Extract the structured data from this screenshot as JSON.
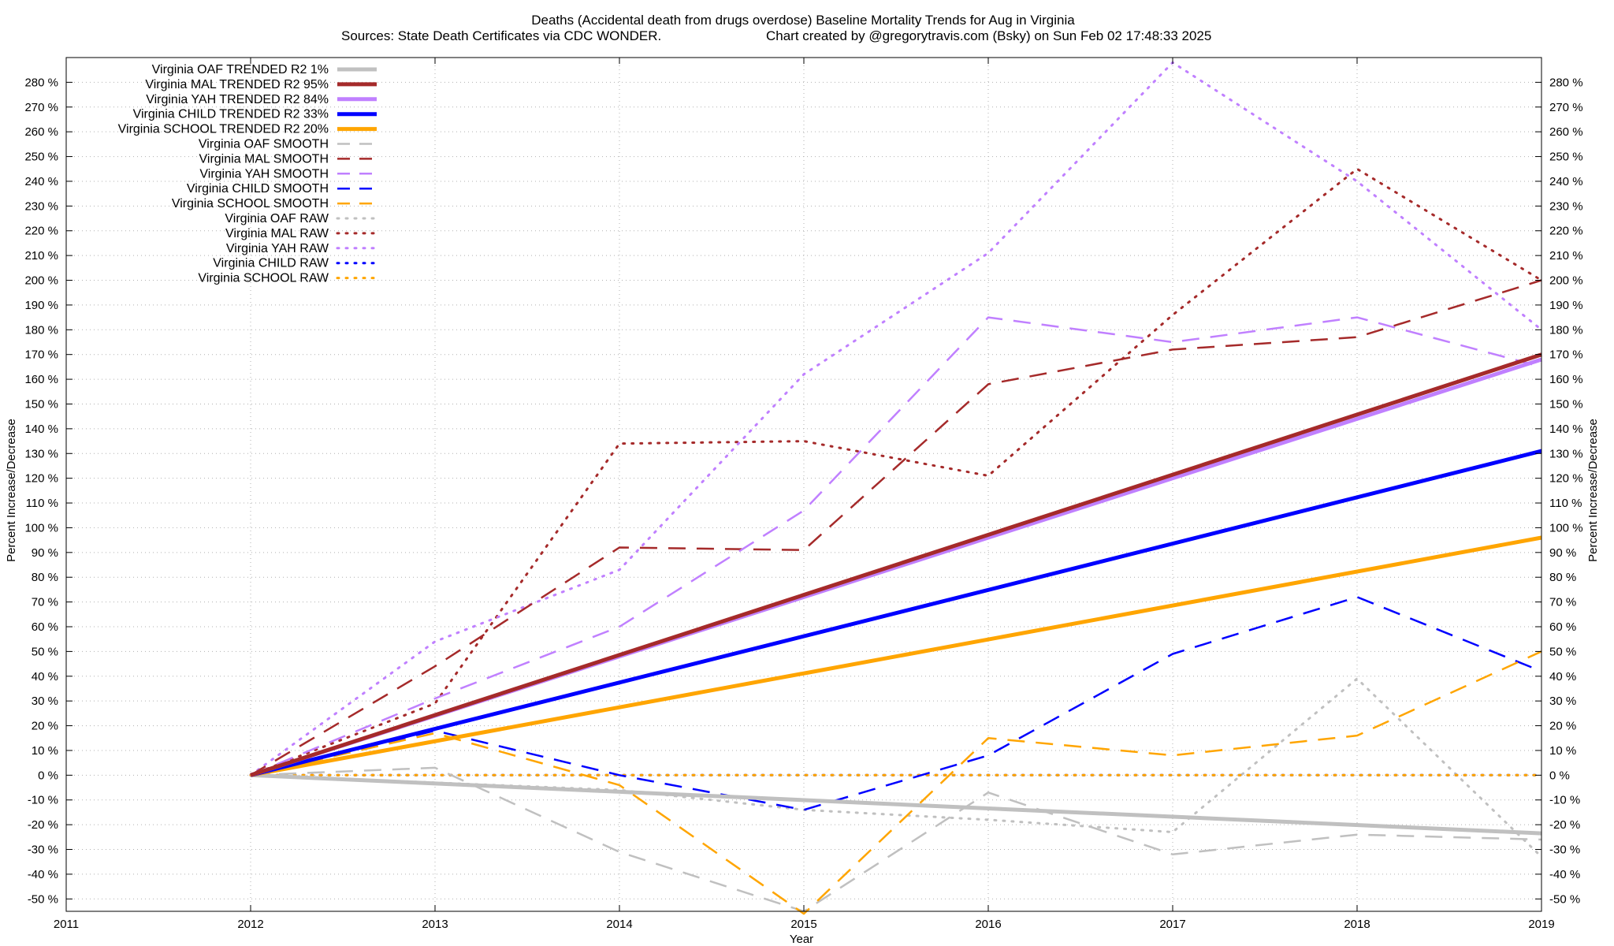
{
  "chart_data": {
    "type": "line",
    "title": "Deaths (Accidental death from drugs overdose)  Baseline Mortality Trends for Aug in Virginia",
    "subtitle_left": "Sources: State Death Certificates via CDC WONDER.",
    "subtitle_right": "Chart created by @gregorytravis.com (Bsky) on Sun Feb 02 17:48:33 2025",
    "xlabel": "Year",
    "ylabel_left": "Percent Increase/Decrease",
    "ylabel_right": "Percent Increase/Decrease",
    "xlim": [
      2011,
      2019
    ],
    "ylim": [
      -55,
      290
    ],
    "x_ticks": [
      "2011",
      "2012",
      "2013",
      "2014",
      "2015",
      "2016",
      "2017",
      "2018",
      "2019"
    ],
    "y_ticks": [
      -50,
      -40,
      -30,
      -20,
      -10,
      0,
      10,
      20,
      30,
      40,
      50,
      60,
      70,
      80,
      90,
      100,
      110,
      120,
      130,
      140,
      150,
      160,
      170,
      180,
      190,
      200,
      210,
      220,
      230,
      240,
      250,
      260,
      270,
      280
    ],
    "y_tick_suffix": " %",
    "grid": true,
    "legend_position": "top-left",
    "series": [
      {
        "name": "Virginia OAF TRENDED R2  1%",
        "color": "#c0c0c0",
        "style": "solid",
        "width": 5,
        "x": [
          2012,
          2019
        ],
        "y": [
          0,
          -23.5
        ]
      },
      {
        "name": "Virginia MAL TRENDED R2  95%",
        "color": "#a52a2a",
        "style": "solid",
        "width": 5,
        "x": [
          2012,
          2019
        ],
        "y": [
          0,
          170
        ]
      },
      {
        "name": "Virginia YAH TRENDED R2  84%",
        "color": "#c080ff",
        "style": "solid",
        "width": 5,
        "x": [
          2012,
          2019
        ],
        "y": [
          0,
          168
        ]
      },
      {
        "name": "Virginia CHILD TRENDED R2  33%",
        "color": "#0000ff",
        "style": "solid",
        "width": 5,
        "x": [
          2012,
          2019
        ],
        "y": [
          0,
          131
        ]
      },
      {
        "name": "Virginia SCHOOL TRENDED R2  20%",
        "color": "#ffa500",
        "style": "solid",
        "width": 5,
        "x": [
          2012,
          2019
        ],
        "y": [
          0,
          96
        ]
      },
      {
        "name": "Virginia OAF SMOOTH",
        "color": "#c0c0c0",
        "style": "dashed",
        "width": 2.5,
        "x": [
          2012,
          2013,
          2014,
          2015,
          2016,
          2017,
          2018,
          2019
        ],
        "y": [
          0,
          3,
          -31,
          -55,
          -7,
          -32,
          -24,
          -26
        ]
      },
      {
        "name": "Virginia MAL SMOOTH",
        "color": "#a52a2a",
        "style": "dashed",
        "width": 2.5,
        "x": [
          2012,
          2013,
          2014,
          2015,
          2016,
          2017,
          2018,
          2019
        ],
        "y": [
          0,
          44,
          92,
          91,
          158,
          172,
          177,
          200
        ]
      },
      {
        "name": "Virginia YAH SMOOTH",
        "color": "#c080ff",
        "style": "dashed",
        "width": 2.5,
        "x": [
          2012,
          2013,
          2014,
          2015,
          2016,
          2017,
          2018,
          2019
        ],
        "y": [
          0,
          31,
          60,
          107,
          185,
          175,
          185,
          165
        ]
      },
      {
        "name": "Virginia CHILD SMOOTH",
        "color": "#0000ff",
        "style": "dashed",
        "width": 2.5,
        "x": [
          2012,
          2013,
          2014,
          2015,
          2016,
          2017,
          2018,
          2019
        ],
        "y": [
          0,
          18,
          0,
          -14,
          8,
          49,
          72,
          42
        ]
      },
      {
        "name": "Virginia SCHOOL SMOOTH",
        "color": "#ffa500",
        "style": "dashed",
        "width": 2.5,
        "x": [
          2012,
          2013,
          2014,
          2015,
          2016,
          2017,
          2018,
          2019
        ],
        "y": [
          0,
          17,
          -4,
          -56,
          15,
          8,
          16,
          50
        ]
      },
      {
        "name": "Virginia OAF RAW",
        "color": "#c0c0c0",
        "style": "dotted",
        "width": 3,
        "x": [
          2012,
          2013,
          2014,
          2015,
          2016,
          2017,
          2018,
          2019
        ],
        "y": [
          0,
          -3,
          -6,
          -14,
          -18,
          -23,
          39,
          -33
        ]
      },
      {
        "name": "Virginia MAL RAW",
        "color": "#a52a2a",
        "style": "dotted",
        "width": 3,
        "x": [
          2012,
          2013,
          2014,
          2015,
          2016,
          2017,
          2018,
          2019
        ],
        "y": [
          0,
          29,
          134,
          135,
          121,
          186,
          245,
          200
        ]
      },
      {
        "name": "Virginia YAH RAW",
        "color": "#c080ff",
        "style": "dotted",
        "width": 3,
        "x": [
          2012,
          2013,
          2014,
          2015,
          2016,
          2017,
          2018,
          2019
        ],
        "y": [
          0,
          54,
          83,
          162,
          211,
          288,
          240,
          180
        ]
      },
      {
        "name": "Virginia CHILD RAW",
        "color": "#0000ff",
        "style": "dotted",
        "width": 3,
        "x": [
          2012,
          2013,
          2014,
          2015,
          2016,
          2017,
          2018,
          2019
        ],
        "y": [
          0,
          0,
          0,
          0,
          0,
          0,
          0,
          0
        ]
      },
      {
        "name": "Virginia SCHOOL RAW",
        "color": "#ffa500",
        "style": "dotted",
        "width": 3,
        "x": [
          2012,
          2013,
          2014,
          2015,
          2016,
          2017,
          2018,
          2019
        ],
        "y": [
          0,
          0,
          0,
          0,
          0,
          0,
          0,
          0
        ]
      }
    ]
  }
}
